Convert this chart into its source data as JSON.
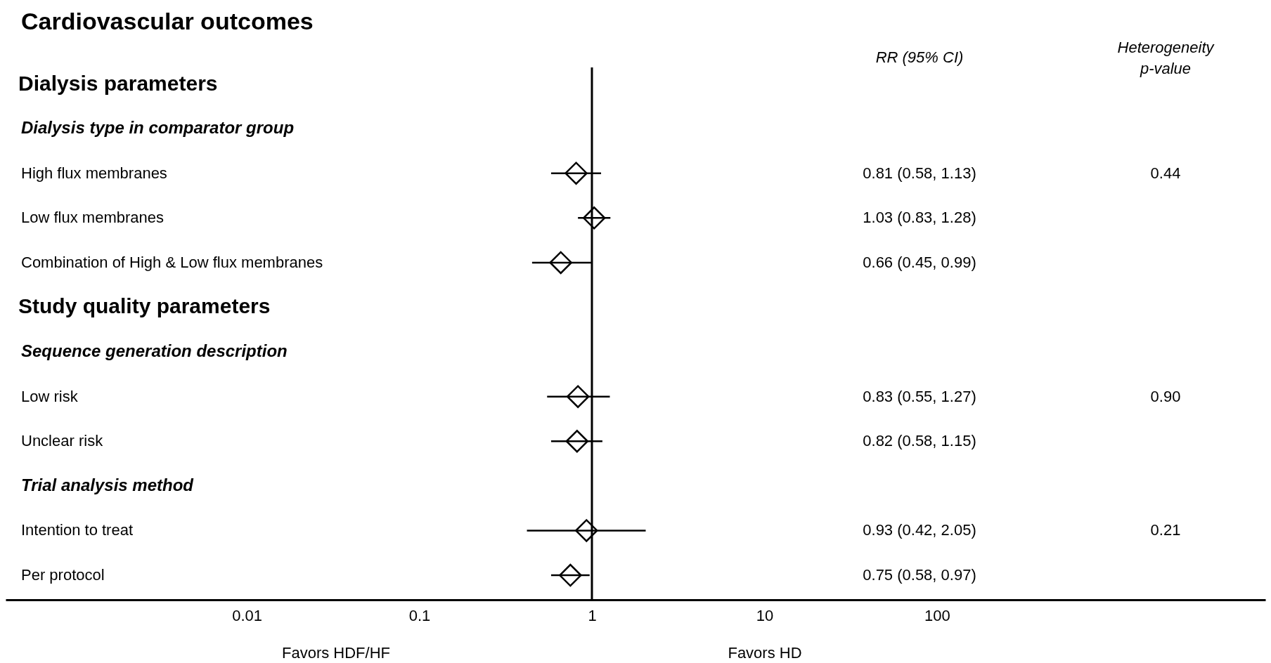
{
  "chart_data": {
    "type": "scatter",
    "orientation": "horizontal",
    "title": "Cardiovascular outcomes",
    "categories": [
      "Dialysis parameters",
      "Dialysis type in comparator group",
      "High flux membranes",
      "Low flux membranes",
      "Combination of High & Low flux membranes",
      "Study quality parameters",
      "Sequence generation description",
      "Low risk",
      "Unclear risk",
      "Trial analysis method",
      "Intention to treat",
      "Per protocol"
    ],
    "values": [
      null,
      null,
      0.81,
      1.03,
      0.66,
      null,
      null,
      0.83,
      0.82,
      null,
      0.93,
      0.75
    ],
    "errors": [
      null,
      null,
      [
        0.58,
        1.13
      ],
      [
        0.83,
        1.28
      ],
      [
        0.45,
        0.99
      ],
      null,
      null,
      [
        0.55,
        1.27
      ],
      [
        0.58,
        1.15
      ],
      null,
      [
        0.42,
        2.05
      ],
      [
        0.58,
        0.97
      ]
    ],
    "color": "#000000",
    "marker": "diamond",
    "log": "x",
    "xlim": [
      0.0004,
      8000
    ],
    "xticks": [
      0.01,
      0.1,
      1,
      10,
      100
    ],
    "ref_lines": [
      {
        "axis": "x",
        "value": 1
      }
    ],
    "annotations": [
      "RR (95% CI)",
      "Heterogeneity\np-value",
      "Favors HDF/HF",
      "Favors HD",
      "0.81 (0.58, 1.13)",
      "1.03 (0.83, 1.28)",
      "0.66 (0.45, 0.99)",
      "0.83 (0.55, 1.27)",
      "0.82 (0.58, 1.15)",
      "0.93 (0.42, 2.05)",
      "0.75 (0.58, 0.97)",
      "0.44",
      "0.90",
      "0.21"
    ]
  }
}
